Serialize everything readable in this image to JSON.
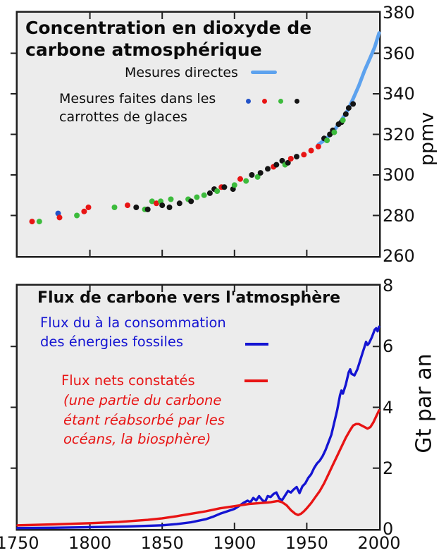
{
  "palette": {
    "blue": "#2353c8",
    "red": "#e81414",
    "green": "#3cbb3c",
    "black": "#141414",
    "direct_line": "#5da2ee",
    "fossil_line": "#1414d2",
    "net_line": "#e81414",
    "panel_bg": "#ececec",
    "frame": "#1f1f1f"
  },
  "chart_data": [
    {
      "type": "scatter",
      "panel": "top",
      "title_line1": "Concentration en dioxyde de",
      "title_line2": "carbone atmosphérique",
      "ylabel": "ppmv",
      "xlim": [
        1750,
        2000
      ],
      "ylim": [
        260,
        380
      ],
      "yticks": [
        380,
        360,
        340,
        320,
        300,
        280,
        260
      ],
      "yticks_interior": [
        360,
        340,
        320,
        300,
        280
      ],
      "xticks": [
        1750,
        1800,
        1850,
        1900,
        1950,
        2000
      ],
      "xticks_interior": [
        1800,
        1850,
        1900,
        1950
      ],
      "grid": false,
      "legend": {
        "direct_label": "Mesures directes",
        "ice_label_line1": "Mesures faites dans les",
        "ice_label_line2": "carrottes de glaces",
        "ice_dot_colors": [
          "blue",
          "red",
          "green",
          "black"
        ]
      },
      "direct_line": {
        "name": "Mesures directes",
        "points": [
          [
            1958,
            315
          ],
          [
            1962,
            317
          ],
          [
            1966,
            319.5
          ],
          [
            1970,
            323
          ],
          [
            1974,
            327
          ],
          [
            1978,
            331.5
          ],
          [
            1982,
            337.5
          ],
          [
            1986,
            344
          ],
          [
            1990,
            351.5
          ],
          [
            1994,
            358
          ],
          [
            1997,
            363
          ],
          [
            2000,
            370
          ]
        ]
      },
      "ice_points": [
        [
          1760,
          277,
          "red"
        ],
        [
          1765,
          277,
          "green"
        ],
        [
          1778,
          281,
          "blue"
        ],
        [
          1779,
          279,
          "red"
        ],
        [
          1791,
          280,
          "green"
        ],
        [
          1796,
          282,
          "red"
        ],
        [
          1799,
          284,
          "red"
        ],
        [
          1817,
          284,
          "green"
        ],
        [
          1826,
          285,
          "red"
        ],
        [
          1832,
          284,
          "black"
        ],
        [
          1838,
          283,
          "green"
        ],
        [
          1840,
          283,
          "black"
        ],
        [
          1843,
          287,
          "green"
        ],
        [
          1846,
          286,
          "red"
        ],
        [
          1849,
          287,
          "green"
        ],
        [
          1850,
          285,
          "black"
        ],
        [
          1855,
          284,
          "black"
        ],
        [
          1856,
          288,
          "green"
        ],
        [
          1862,
          286,
          "black"
        ],
        [
          1868,
          288,
          "green"
        ],
        [
          1870,
          287,
          "black"
        ],
        [
          1874,
          289,
          "green"
        ],
        [
          1879,
          290,
          "green"
        ],
        [
          1883,
          291,
          "black"
        ],
        [
          1886,
          293,
          "black"
        ],
        [
          1888,
          292,
          "green"
        ],
        [
          1891,
          294,
          "red"
        ],
        [
          1893,
          294,
          "black"
        ],
        [
          1899,
          293,
          "black"
        ],
        [
          1900,
          295,
          "green"
        ],
        [
          1904,
          298,
          "red"
        ],
        [
          1908,
          297,
          "green"
        ],
        [
          1912,
          300,
          "black"
        ],
        [
          1916,
          299,
          "green"
        ],
        [
          1918,
          301,
          "black"
        ],
        [
          1923,
          303,
          "black"
        ],
        [
          1927,
          304,
          "red"
        ],
        [
          1929,
          305,
          "black"
        ],
        [
          1933,
          307,
          "black"
        ],
        [
          1935,
          305,
          "green"
        ],
        [
          1937,
          306,
          "black"
        ],
        [
          1939,
          308,
          "red"
        ],
        [
          1943,
          309,
          "black"
        ],
        [
          1948,
          310,
          "red"
        ],
        [
          1953,
          312,
          "red"
        ],
        [
          1958,
          314,
          "red"
        ],
        [
          1962,
          318,
          "black"
        ],
        [
          1964,
          317,
          "green"
        ],
        [
          1966,
          320,
          "black"
        ],
        [
          1968,
          322,
          "black"
        ],
        [
          1969,
          321,
          "green"
        ],
        [
          1972,
          325,
          "black"
        ],
        [
          1974,
          326,
          "black"
        ],
        [
          1975,
          327,
          "green"
        ],
        [
          1977,
          330,
          "black"
        ],
        [
          1979,
          333,
          "black"
        ],
        [
          1982,
          335,
          "black"
        ]
      ]
    },
    {
      "type": "line",
      "panel": "bottom",
      "title": "Flux de carbone vers l'atmosphère",
      "ylabel": "Gt par an",
      "xlim": [
        1750,
        2000
      ],
      "ylim": [
        0,
        8
      ],
      "yticks": [
        8,
        6,
        4,
        2,
        0
      ],
      "yticks_interior": [
        6,
        4,
        2
      ],
      "xticks": [
        1750,
        1800,
        1850,
        1900,
        1950,
        2000
      ],
      "xticks_interior": [
        1800,
        1850,
        1900,
        1950
      ],
      "grid": false,
      "legend": {
        "fossil_line1": "Flux du à la consommation",
        "fossil_line2": "des énergies fossiles",
        "net_label": "Flux nets constatés",
        "note_line1": "(une partie du carbone",
        "note_line2": "étant réabsorbé par les",
        "note_line3": "océans, la biosphère)"
      },
      "series": [
        {
          "name": "Flux du à la consommation des énergies fossiles",
          "color_key": "fossil_line",
          "points": [
            [
              1750,
              0.03
            ],
            [
              1775,
              0.04
            ],
            [
              1800,
              0.06
            ],
            [
              1825,
              0.08
            ],
            [
              1850,
              0.12
            ],
            [
              1860,
              0.16
            ],
            [
              1870,
              0.22
            ],
            [
              1880,
              0.32
            ],
            [
              1885,
              0.4
            ],
            [
              1890,
              0.5
            ],
            [
              1895,
              0.58
            ],
            [
              1900,
              0.66
            ],
            [
              1903,
              0.75
            ],
            [
              1906,
              0.85
            ],
            [
              1909,
              0.93
            ],
            [
              1911,
              0.88
            ],
            [
              1913,
              1.02
            ],
            [
              1915,
              0.94
            ],
            [
              1917,
              1.08
            ],
            [
              1919,
              0.96
            ],
            [
              1921,
              0.88
            ],
            [
              1923,
              1.08
            ],
            [
              1925,
              1.05
            ],
            [
              1927,
              1.15
            ],
            [
              1929,
              1.2
            ],
            [
              1931,
              1.0
            ],
            [
              1933,
              0.95
            ],
            [
              1935,
              1.1
            ],
            [
              1937,
              1.25
            ],
            [
              1939,
              1.2
            ],
            [
              1941,
              1.3
            ],
            [
              1943,
              1.38
            ],
            [
              1945,
              1.18
            ],
            [
              1947,
              1.4
            ],
            [
              1949,
              1.5
            ],
            [
              1951,
              1.68
            ],
            [
              1953,
              1.8
            ],
            [
              1955,
              2.0
            ],
            [
              1957,
              2.15
            ],
            [
              1959,
              2.25
            ],
            [
              1961,
              2.4
            ],
            [
              1963,
              2.6
            ],
            [
              1965,
              2.85
            ],
            [
              1967,
              3.1
            ],
            [
              1969,
              3.5
            ],
            [
              1971,
              3.9
            ],
            [
              1973,
              4.4
            ],
            [
              1974,
              4.55
            ],
            [
              1975,
              4.45
            ],
            [
              1977,
              4.75
            ],
            [
              1979,
              5.15
            ],
            [
              1980,
              5.25
            ],
            [
              1981,
              5.1
            ],
            [
              1983,
              5.05
            ],
            [
              1985,
              5.25
            ],
            [
              1987,
              5.55
            ],
            [
              1989,
              5.85
            ],
            [
              1990,
              6.0
            ],
            [
              1991,
              6.15
            ],
            [
              1992,
              6.05
            ],
            [
              1993,
              6.1
            ],
            [
              1995,
              6.3
            ],
            [
              1997,
              6.55
            ],
            [
              1998,
              6.6
            ],
            [
              1999,
              6.5
            ],
            [
              2000,
              6.65
            ]
          ]
        },
        {
          "name": "Flux nets constatés",
          "color_key": "net_line",
          "points": [
            [
              1750,
              0.12
            ],
            [
              1775,
              0.15
            ],
            [
              1800,
              0.19
            ],
            [
              1820,
              0.23
            ],
            [
              1840,
              0.3
            ],
            [
              1850,
              0.35
            ],
            [
              1860,
              0.42
            ],
            [
              1870,
              0.5
            ],
            [
              1880,
              0.58
            ],
            [
              1890,
              0.68
            ],
            [
              1900,
              0.75
            ],
            [
              1910,
              0.82
            ],
            [
              1920,
              0.86
            ],
            [
              1925,
              0.88
            ],
            [
              1930,
              0.92
            ],
            [
              1933,
              0.88
            ],
            [
              1936,
              0.78
            ],
            [
              1939,
              0.62
            ],
            [
              1942,
              0.5
            ],
            [
              1944,
              0.46
            ],
            [
              1946,
              0.5
            ],
            [
              1948,
              0.58
            ],
            [
              1950,
              0.68
            ],
            [
              1953,
              0.85
            ],
            [
              1956,
              1.05
            ],
            [
              1959,
              1.25
            ],
            [
              1962,
              1.5
            ],
            [
              1965,
              1.8
            ],
            [
              1968,
              2.1
            ],
            [
              1971,
              2.4
            ],
            [
              1974,
              2.7
            ],
            [
              1977,
              3.0
            ],
            [
              1980,
              3.25
            ],
            [
              1982,
              3.4
            ],
            [
              1984,
              3.45
            ],
            [
              1986,
              3.45
            ],
            [
              1988,
              3.4
            ],
            [
              1990,
              3.35
            ],
            [
              1992,
              3.3
            ],
            [
              1994,
              3.35
            ],
            [
              1996,
              3.5
            ],
            [
              1998,
              3.7
            ],
            [
              2000,
              3.9
            ]
          ]
        }
      ]
    }
  ]
}
